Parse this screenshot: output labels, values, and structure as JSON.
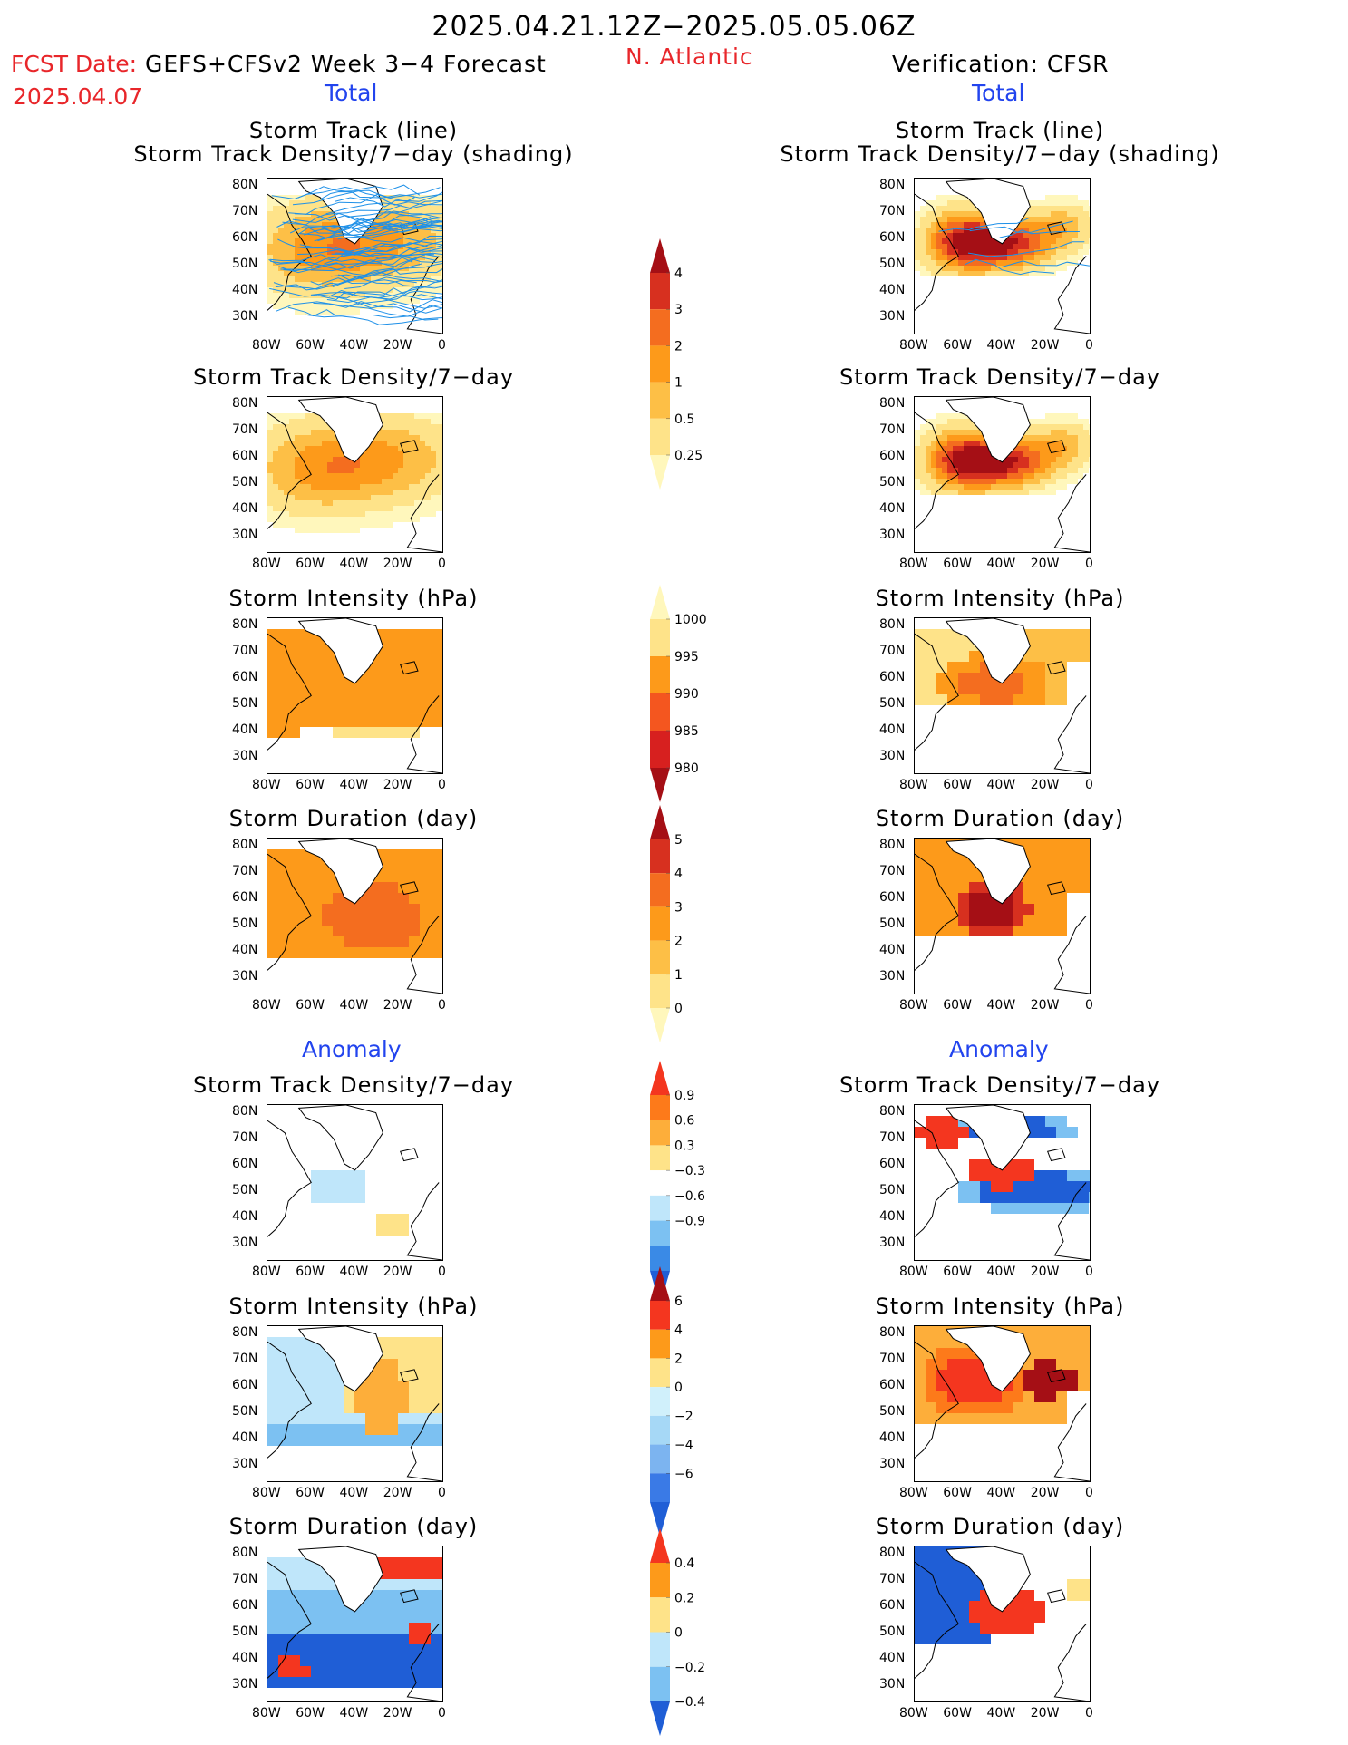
{
  "header": {
    "title": "2025.04.21.12Z−2025.05.05.06Z",
    "fcst_label": "FCST Date:",
    "fcst_model": "GEFS+CFSv2 Week 3−4 Forecast",
    "fcst_date": "2025.04.07",
    "region": "N. Atlantic",
    "verification": "Verification: CFSR"
  },
  "sections": {
    "total": "Total",
    "anomaly": "Anomaly"
  },
  "panel_titles": {
    "track_line": "Storm Track (line)",
    "track_shading": "Storm Track Density/7−day (shading)",
    "density": "Storm Track Density/7−day",
    "intensity": "Storm Intensity (hPa)",
    "duration": "Storm Duration (day)"
  },
  "axes": {
    "lat_labels": [
      "80N",
      "70N",
      "60N",
      "50N",
      "40N",
      "30N"
    ],
    "lon_labels": [
      "80W",
      "60W",
      "40W",
      "20W",
      "0"
    ]
  },
  "colorbars": {
    "density_total": {
      "levels": [
        "4",
        "3",
        "2",
        "1",
        "0.5",
        "0.25"
      ],
      "colors": [
        "#a50f15",
        "#d7301f",
        "#f46d1f",
        "#fd9a1a",
        "#fdbf46",
        "#fee389",
        "#fff7bc"
      ]
    },
    "intensity_total": {
      "levels": [
        "1000",
        "995",
        "990",
        "985",
        "980"
      ],
      "colors": [
        "#fff7bc",
        "#fee389",
        "#fd9a1a",
        "#f4561f",
        "#d7201f",
        "#a50f15"
      ]
    },
    "duration_total": {
      "levels": [
        "5",
        "4",
        "3",
        "2",
        "1",
        "0"
      ],
      "colors": [
        "#a50f15",
        "#d7301f",
        "#f46d1f",
        "#fd9a1a",
        "#fdbf46",
        "#fee389",
        "#fff7bc"
      ]
    },
    "density_anom": {
      "levels": [
        "0.9",
        "0.6",
        "0.3",
        "−0.3",
        "−0.6",
        "−0.9"
      ],
      "colors": [
        "#f4361f",
        "#fd7a1a",
        "#fdae3a",
        "#fee389",
        "#ffffff",
        "#bfe6fa",
        "#7cc1f2",
        "#3a8ae6",
        "#1f5ed6"
      ]
    },
    "intensity_anom": {
      "levels": [
        "6",
        "4",
        "2",
        "0",
        "−2",
        "−4",
        "−6"
      ],
      "colors": [
        "#a50f15",
        "#f4361f",
        "#fd9a1a",
        "#fee389",
        "#d0f0fb",
        "#a6d8f6",
        "#7cb4f0",
        "#3a7ae6",
        "#1f5ed6"
      ]
    },
    "duration_anom": {
      "levels": [
        "0.4",
        "0.2",
        "0",
        "−0.2",
        "−0.4"
      ],
      "colors": [
        "#f4361f",
        "#fd9a1a",
        "#fee389",
        "#bfe6fa",
        "#7cc1f2",
        "#1f5ed6"
      ]
    }
  }
}
